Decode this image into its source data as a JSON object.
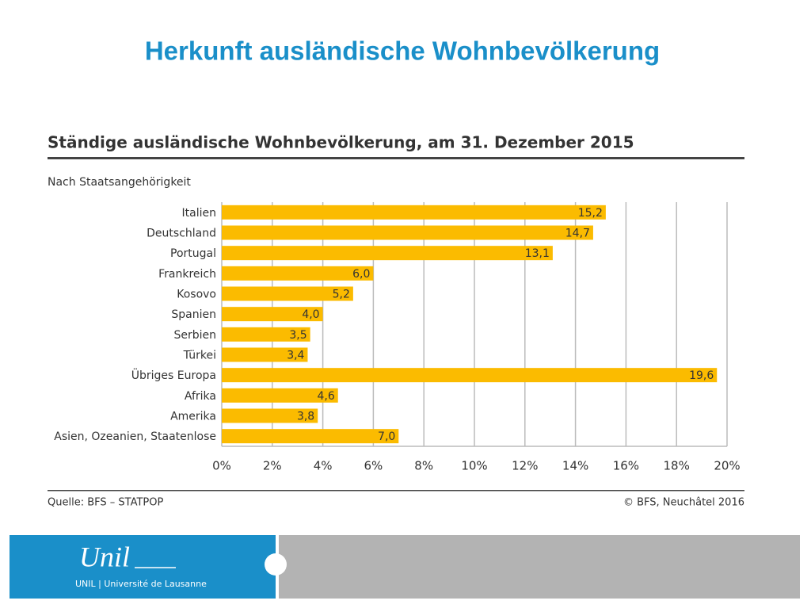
{
  "slide_title": "Herkunft ausländische Wohnbevölkerung",
  "chart_data": {
    "type": "bar",
    "orientation": "horizontal",
    "title": "Ständige ausländische Wohnbevölkerung, am 31. Dezember 2015",
    "subtitle": "Nach Staatsangehörigkeit",
    "categories": [
      "Italien",
      "Deutschland",
      "Portugal",
      "Frankreich",
      "Kosovo",
      "Spanien",
      "Serbien",
      "Türkei",
      "Übriges Europa",
      "Afrika",
      "Amerika",
      "Asien, Ozeanien, Staatenlose"
    ],
    "values": [
      15.2,
      14.7,
      13.1,
      6.0,
      5.2,
      4.0,
      3.5,
      3.4,
      19.6,
      4.6,
      3.8,
      7.0
    ],
    "value_labels": [
      "15,2",
      "14,7",
      "13,1",
      "6,0",
      "5,2",
      "4,0",
      "3,5",
      "3,4",
      "19,6",
      "4,6",
      "3,8",
      "7,0"
    ],
    "color": "#fbbb00",
    "xlim": [
      0,
      20
    ],
    "xticks": [
      {
        "value": 0,
        "label": "0%"
      },
      {
        "value": 2,
        "label": "2%"
      },
      {
        "value": 4,
        "label": "4%"
      },
      {
        "value": 6,
        "label": "6%"
      },
      {
        "value": 8,
        "label": "8%"
      },
      {
        "value": 10,
        "label": "10%"
      },
      {
        "value": 12,
        "label": "12%"
      },
      {
        "value": 14,
        "label": "14%"
      },
      {
        "value": 16,
        "label": "16%"
      },
      {
        "value": 18,
        "label": "18%"
      },
      {
        "value": 20,
        "label": "20%"
      }
    ],
    "grid": true,
    "source": "Quelle: BFS – STATPOP",
    "copyright": "© BFS, Neuchâtel 2016"
  },
  "footer": {
    "logo": "Unil",
    "institution": "UNIL | Université de Lausanne"
  }
}
